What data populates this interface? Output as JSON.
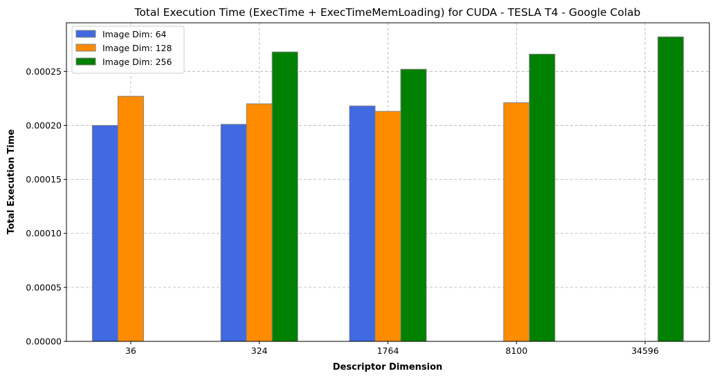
{
  "chart_data": {
    "type": "bar",
    "title": "Total Execution Time (ExecTime + ExecTimeMemLoading) for CUDA - TESLA T4 - Google Colab",
    "xlabel": "Descriptor Dimension",
    "ylabel": "Total Execution Time",
    "categories": [
      "36",
      "324",
      "1764",
      "8100",
      "34596"
    ],
    "ylim": [
      0,
      0.000295
    ],
    "yticks": [
      "0.00000",
      "0.00005",
      "0.00010",
      "0.00015",
      "0.00020",
      "0.00025"
    ],
    "grid": true,
    "legend_position": "top-left",
    "series": [
      {
        "name": "Image Dim: 64",
        "color": "#4169e1",
        "values": [
          0.0002,
          0.000201,
          0.000218,
          null,
          null
        ]
      },
      {
        "name": "Image Dim: 128",
        "color": "#ff8c00",
        "values": [
          0.000227,
          0.00022,
          0.000213,
          0.000221,
          null
        ]
      },
      {
        "name": "Image Dim: 256",
        "color": "#008000",
        "values": [
          null,
          0.000268,
          0.000252,
          0.000266,
          0.000282
        ]
      }
    ]
  }
}
